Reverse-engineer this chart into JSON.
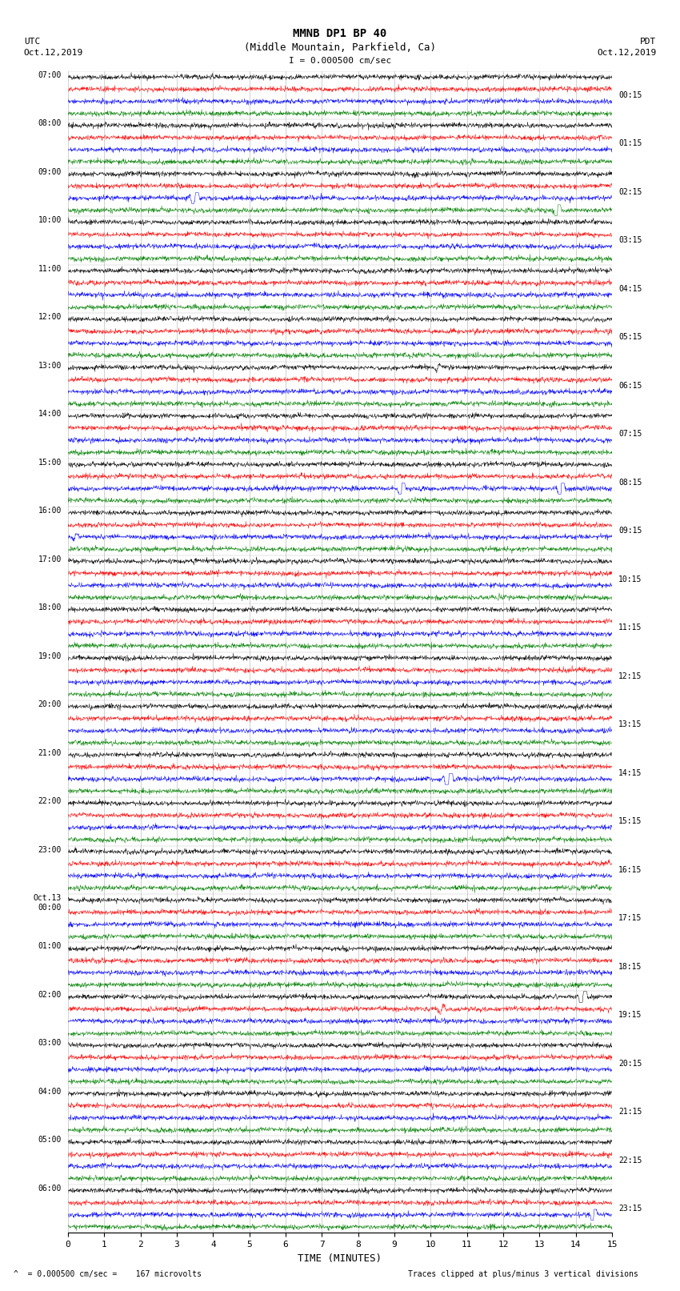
{
  "title_line1": "MMNB DP1 BP 40",
  "title_line2": "(Middle Mountain, Parkfield, Ca)",
  "scale_label": "I = 0.000500 cm/sec",
  "utc_label": "UTC",
  "utc_date": "Oct.12,2019",
  "pdt_label": "PDT",
  "pdt_date": "Oct.12,2019",
  "xlabel": "TIME (MINUTES)",
  "bottom_left": "= 0.000500 cm/sec =    167 microvolts",
  "bottom_right": "Traces clipped at plus/minus 3 vertical divisions",
  "left_times": [
    "07:00",
    "08:00",
    "09:00",
    "10:00",
    "11:00",
    "12:00",
    "13:00",
    "14:00",
    "15:00",
    "16:00",
    "17:00",
    "18:00",
    "19:00",
    "20:00",
    "21:00",
    "22:00",
    "23:00",
    "Oct.13\n00:00",
    "01:00",
    "02:00",
    "03:00",
    "04:00",
    "05:00",
    "06:00"
  ],
  "right_times": [
    "00:15",
    "01:15",
    "02:15",
    "03:15",
    "04:15",
    "05:15",
    "06:15",
    "07:15",
    "08:15",
    "09:15",
    "10:15",
    "11:15",
    "12:15",
    "13:15",
    "14:15",
    "15:15",
    "16:15",
    "17:15",
    "18:15",
    "19:15",
    "20:15",
    "21:15",
    "22:15",
    "23:15"
  ],
  "n_rows": 24,
  "n_traces_per_row": 4,
  "trace_colors": [
    "black",
    "red",
    "blue",
    "green"
  ],
  "x_min": 0,
  "x_max": 15,
  "x_ticks": [
    0,
    1,
    2,
    3,
    4,
    5,
    6,
    7,
    8,
    9,
    10,
    11,
    12,
    13,
    14,
    15
  ],
  "background_color": "white",
  "noise_amplitude": 0.1,
  "seed": 42,
  "events": [
    [
      2,
      3,
      13.5,
      2.8,
      0.04
    ],
    [
      2,
      2,
      3.5,
      1.2,
      0.08
    ],
    [
      6,
      0,
      10.2,
      0.5,
      0.06
    ],
    [
      8,
      2,
      9.2,
      2.5,
      0.05
    ],
    [
      8,
      2,
      13.6,
      2.5,
      0.05
    ],
    [
      9,
      2,
      0.2,
      0.4,
      0.05
    ],
    [
      14,
      2,
      10.5,
      2.5,
      0.07
    ],
    [
      19,
      0,
      14.2,
      2.2,
      0.07
    ],
    [
      19,
      1,
      10.3,
      0.4,
      0.08
    ],
    [
      23,
      2,
      14.5,
      1.5,
      0.05
    ]
  ]
}
